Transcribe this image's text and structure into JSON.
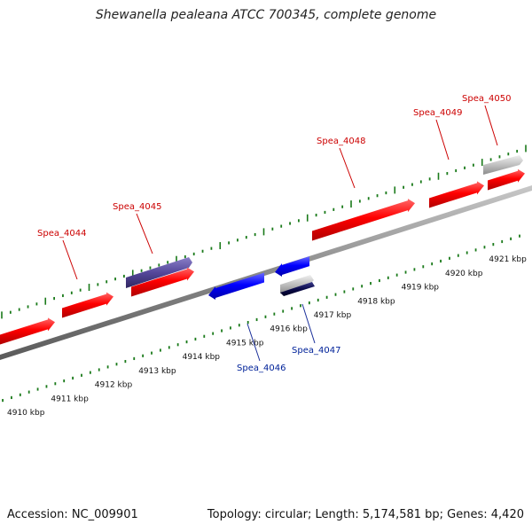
{
  "title": "Shewanella pealeana ATCC 700345, complete genome",
  "footer": {
    "accession": "Accession: NC_009901",
    "summary": "Topology: circular; Length: 5,174,581 bp; Genes: 4,420"
  },
  "colors": {
    "forward_gene": "#ff0000",
    "reverse_gene": "#0000ff",
    "selected_forward": "#55479a",
    "selected_reverse": "#0a0a4a",
    "rna_gene": "#c0c0c0",
    "backbone": "#8a8a8a",
    "tick": "#1a7a1a",
    "forward_label": "#cc0000",
    "reverse_label": "#002299"
  },
  "scale_labels": [
    "4910 kbp",
    "4911 kbp",
    "4912 kbp",
    "4913 kbp",
    "4914 kbp",
    "4915 kbp",
    "4916 kbp",
    "4917 kbp",
    "4918 kbp",
    "4919 kbp",
    "4920 kbp",
    "4921 kbp"
  ],
  "genes": [
    {
      "label": "Spea_4044",
      "strand": "+",
      "start_kbp": 4909.8,
      "end_kbp": 4911.05
    },
    {
      "label": "Spea_4045",
      "strand": "+",
      "start_kbp": 4911.95,
      "end_kbp": 4913.35
    },
    {
      "label": "Spea_4046",
      "strand": "-",
      "start_kbp": 4914.25,
      "end_kbp": 4915.55
    },
    {
      "label": "Spea_4047",
      "strand": "-",
      "start_kbp": 4916.3,
      "end_kbp": 4917.05
    },
    {
      "label": "Spea_4048",
      "strand": "+",
      "start_kbp": 4916.8,
      "end_kbp": 4919.2
    },
    {
      "label": "Spea_4049",
      "strand": "+",
      "start_kbp": 4919.85,
      "end_kbp": 4921.05
    },
    {
      "label": "Spea_4050",
      "strand": "+",
      "start_kbp": 4921.2,
      "end_kbp": 4922.0
    }
  ]
}
